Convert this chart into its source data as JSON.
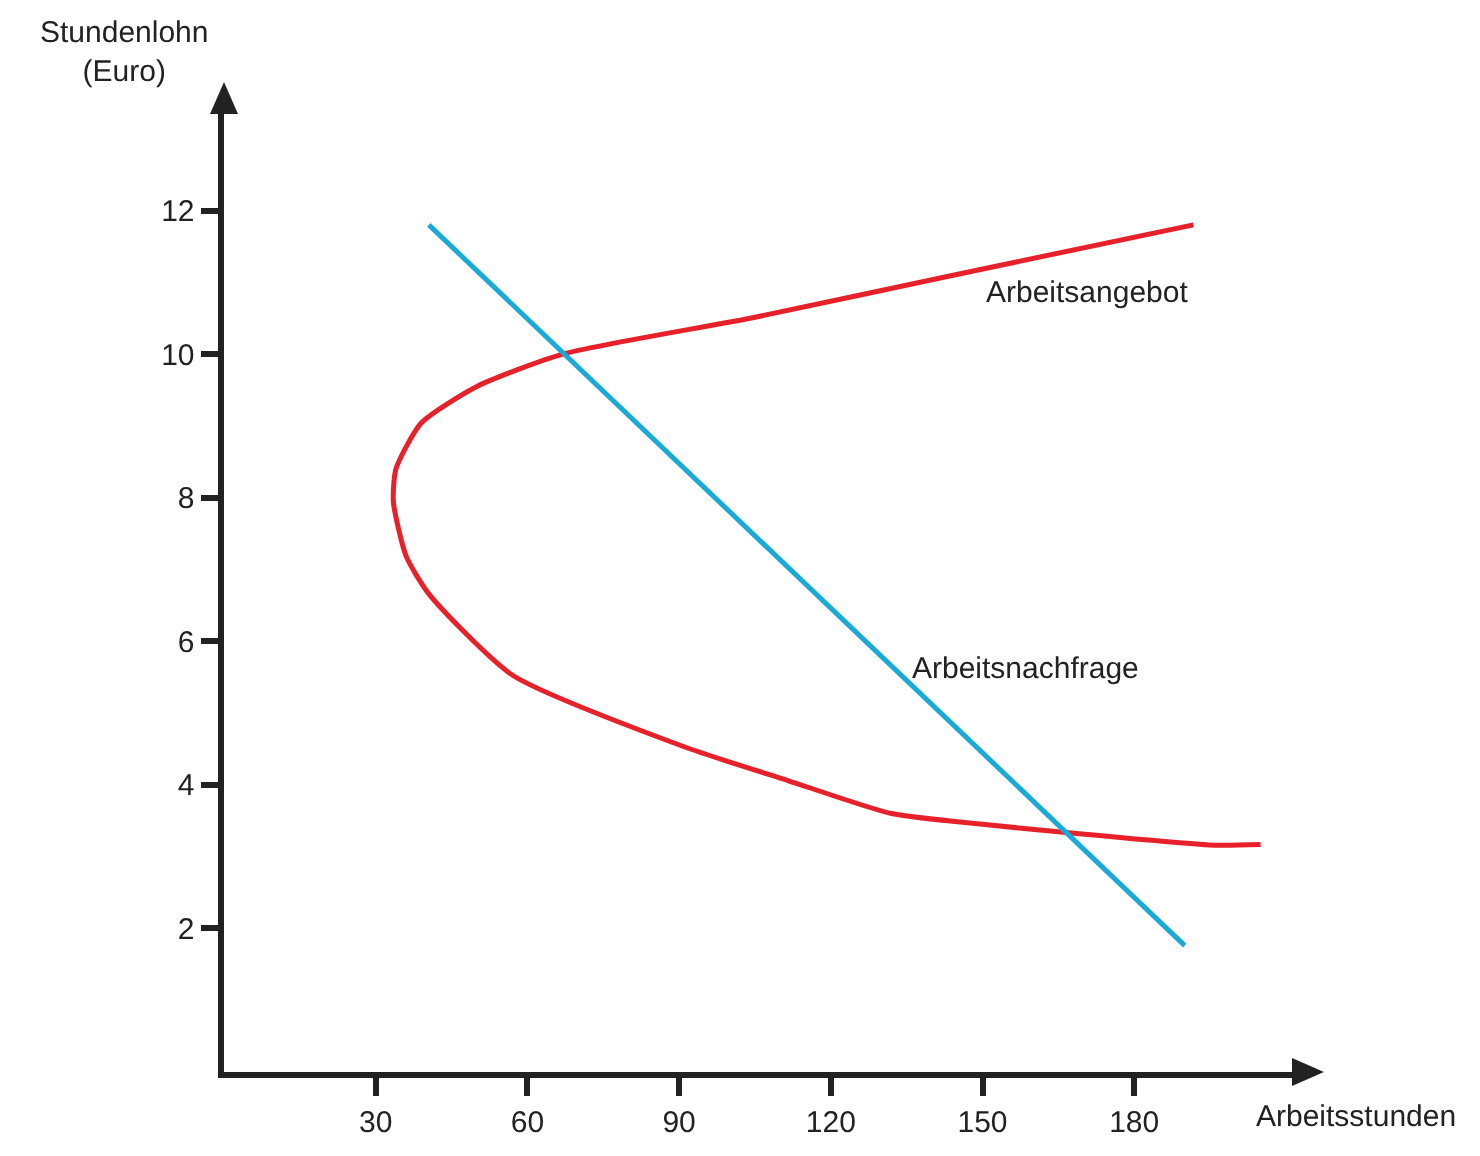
{
  "chart_data": {
    "type": "line",
    "xlabel": "Arbeitsstunden",
    "ylabel": "Stundenlohn\n(Euro)",
    "xlim": [
      0,
      212
    ],
    "ylim": [
      0,
      13.4
    ],
    "xticks": [
      30,
      60,
      90,
      120,
      150,
      180
    ],
    "yticks": [
      2,
      4,
      6,
      8,
      10,
      12
    ],
    "grid": false,
    "legend": false,
    "marker": "none",
    "line_style": "solid",
    "series": [
      {
        "name": "Arbeitsangebot",
        "color": "#e8202a",
        "x": [
          191.7,
          145.6,
          104.8,
          67,
          50,
          39,
          34,
          33.5,
          36,
          40.5,
          57,
          91,
          111.5,
          132,
          150,
          166,
          196,
          205
        ],
        "values": [
          11.8,
          11.12,
          10.51,
          10,
          9.55,
          9.04,
          8.4,
          7.94,
          7.19,
          6.66,
          5.53,
          4.53,
          4.06,
          3.6,
          3.45,
          3.34,
          3.16,
          3.17
        ]
      },
      {
        "name": "Arbeitsnachfrage",
        "color": "#1aaad8",
        "x": [
          40.5,
          190
        ],
        "values": [
          11.8,
          1.76
        ]
      }
    ]
  }
}
